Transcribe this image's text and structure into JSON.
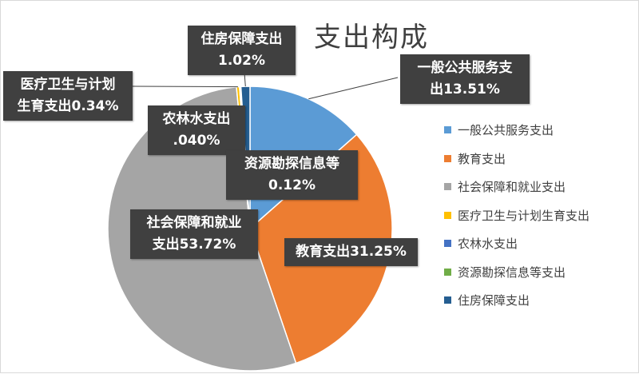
{
  "chart_data": {
    "type": "pie",
    "title": "支出构成",
    "legend_position": "right",
    "slices": [
      {
        "name": "一般公共服务支出",
        "value": 13.51,
        "color": "#5b9bd5",
        "label_lines": [
          "一般公共服务支",
          "出13.51%"
        ]
      },
      {
        "name": "教育支出",
        "value": 31.25,
        "color": "#ed7d31",
        "label_lines": [
          "教育支出31.25%"
        ]
      },
      {
        "name": "社会保障和就业支出",
        "value": 53.72,
        "color": "#a5a5a5",
        "label_lines": [
          "社会保障和就业",
          "支出53.72%"
        ]
      },
      {
        "name": "医疗卫生与计划生育支出",
        "value": 0.34,
        "color": "#ffc000",
        "label_lines": [
          "医疗卫生与计划",
          "生育支出0.34%"
        ]
      },
      {
        "name": "农林水支出",
        "value": 0.04,
        "color": "#4472c4",
        "label_lines": [
          "农林水支出",
          ".040%"
        ]
      },
      {
        "name": "资源勘探信息等支出",
        "value": 0.12,
        "color": "#70ad47",
        "label_lines": [
          "资源勘探信息等",
          "0.12%"
        ]
      },
      {
        "name": "住房保障支出",
        "value": 1.02,
        "color": "#255e91",
        "label_lines": [
          "住房保障支出",
          "1.02%"
        ]
      }
    ]
  }
}
